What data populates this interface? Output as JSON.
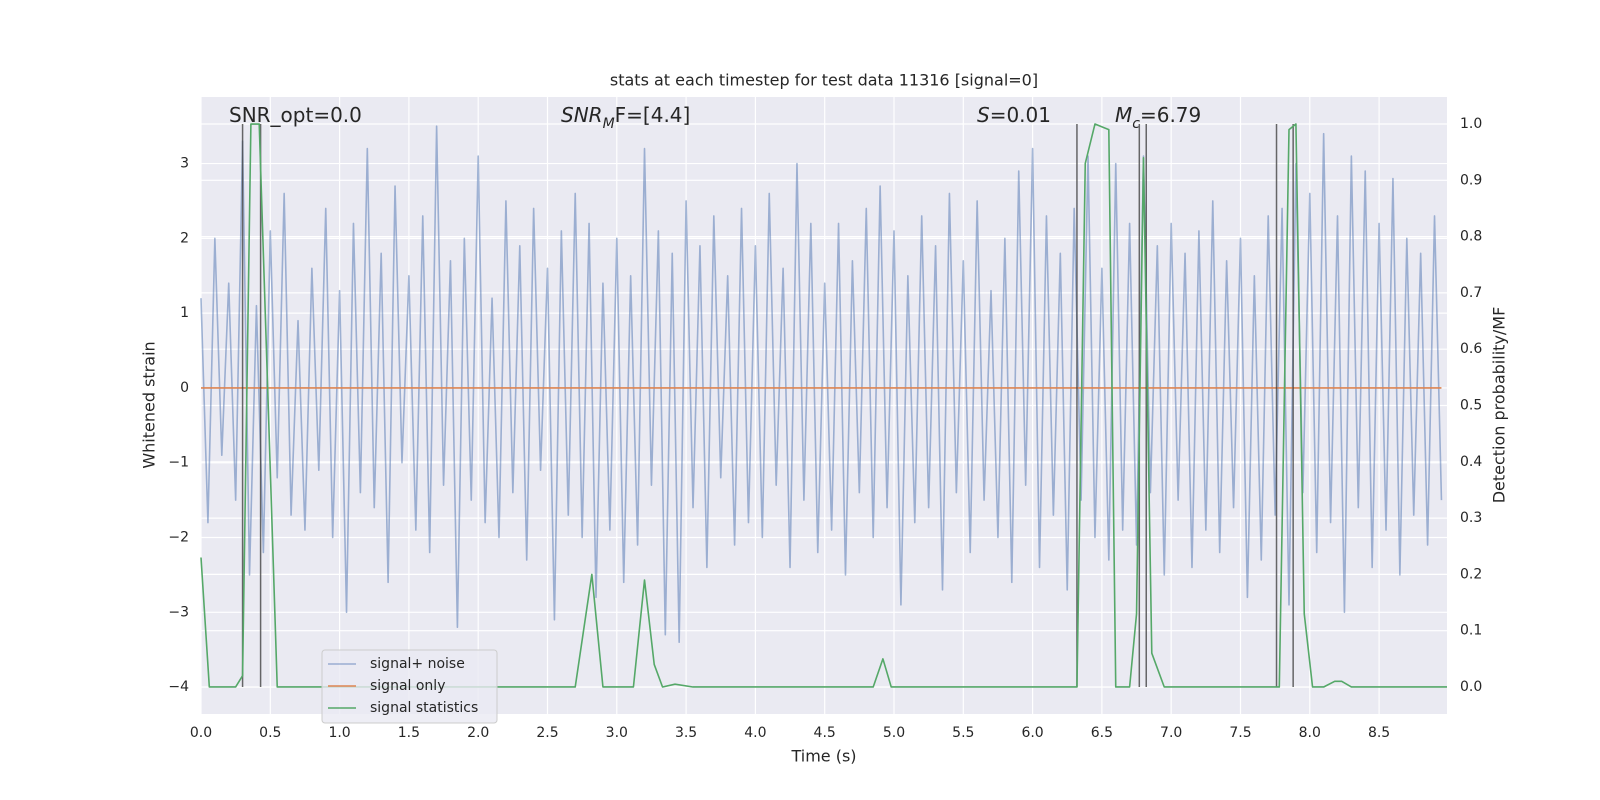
{
  "chart_data": {
    "type": "line",
    "title": "stats at each timestep for test data 11316 [signal=0]",
    "xlabel": "Time (s)",
    "ylabel": "Whitened strain",
    "y2label": "Detection probability/MF",
    "annotations": [
      {
        "base": "SNR_opt=0.0"
      },
      {
        "base": "SNR",
        "sub": "M",
        "rest": "F=[4.4]"
      },
      {
        "base": "S",
        "rest": "=0.01"
      },
      {
        "base": "M",
        "sub": "c",
        "rest": "=6.79"
      }
    ],
    "xlim": [
      0,
      8.99
    ],
    "ylim": [
      -4.36,
      3.89
    ],
    "y2lim": [
      -0.048,
      1.048
    ],
    "xticks": [
      {
        "value": 0,
        "label": "0.0"
      },
      0.5,
      {
        "value": 1,
        "label": "1.0"
      },
      1.5,
      {
        "value": 2,
        "label": "2.0"
      },
      2.5,
      {
        "value": 3,
        "label": "3.0"
      },
      3.5,
      {
        "value": 4,
        "label": "4.0"
      },
      4.5,
      {
        "value": 5,
        "label": "5.0"
      },
      5.5,
      {
        "value": 6,
        "label": "6.0"
      },
      6.5,
      {
        "value": 7,
        "label": "7.0"
      },
      7.5,
      {
        "value": 8,
        "label": "8.0"
      },
      8.5
    ],
    "yticks": [
      {
        "value": -4,
        "label": "−4"
      },
      {
        "value": -3,
        "label": "−3"
      },
      {
        "value": -2,
        "label": "−2"
      },
      {
        "value": -1,
        "label": "−1"
      },
      0,
      1,
      2,
      3
    ],
    "y2ticks": [
      {
        "value": 0,
        "label": "0.0"
      },
      0.1,
      0.2,
      0.3,
      0.4,
      0.5,
      0.6,
      0.7,
      0.8,
      0.9,
      {
        "value": 1,
        "label": "1.0"
      }
    ],
    "grid": true,
    "legend": "lower left",
    "vline_color": "#444444",
    "vline_range": [
      0,
      1
    ],
    "vlines": [
      0.3,
      0.43,
      6.32,
      6.77,
      6.82,
      7.76,
      7.88
    ],
    "series": [
      {
        "name": "signal+ noise",
        "color": "#4c72b0",
        "alpha": 0.5,
        "x": [
          0,
          0.05,
          0.1,
          0.15,
          0.2,
          0.25,
          0.3,
          0.35,
          0.4,
          0.45,
          0.5,
          0.55,
          0.6,
          0.65,
          0.7,
          0.75,
          0.8,
          0.85,
          0.9,
          0.95,
          1,
          1.05,
          1.1,
          1.15,
          1.2,
          1.25,
          1.3,
          1.35,
          1.4,
          1.45,
          1.5,
          1.55,
          1.6,
          1.65,
          1.7,
          1.75,
          1.8,
          1.85,
          1.9,
          1.95,
          2,
          2.05,
          2.1,
          2.15,
          2.2,
          2.25,
          2.3,
          2.35,
          2.4,
          2.45,
          2.5,
          2.55,
          2.6,
          2.65,
          2.7,
          2.75,
          2.8,
          2.85,
          2.9,
          2.95,
          3,
          3.05,
          3.1,
          3.15,
          3.2,
          3.25,
          3.3,
          3.35,
          3.4,
          3.45,
          3.5,
          3.55,
          3.6,
          3.65,
          3.7,
          3.75,
          3.8,
          3.85,
          3.9,
          3.95,
          4,
          4.05,
          4.1,
          4.15,
          4.2,
          4.25,
          4.3,
          4.35,
          4.4,
          4.45,
          4.5,
          4.55,
          4.6,
          4.65,
          4.7,
          4.75,
          4.8,
          4.85,
          4.9,
          4.95,
          5,
          5.05,
          5.1,
          5.15,
          5.2,
          5.25,
          5.3,
          5.35,
          5.4,
          5.45,
          5.5,
          5.55,
          5.6,
          5.65,
          5.7,
          5.75,
          5.8,
          5.85,
          5.9,
          5.95,
          6,
          6.05,
          6.1,
          6.15,
          6.2,
          6.25,
          6.3,
          6.35,
          6.4,
          6.45,
          6.5,
          6.55,
          6.6,
          6.65,
          6.7,
          6.75,
          6.8,
          6.85,
          6.9,
          6.95,
          7,
          7.05,
          7.1,
          7.15,
          7.2,
          7.25,
          7.3,
          7.35,
          7.4,
          7.45,
          7.5,
          7.55,
          7.6,
          7.65,
          7.7,
          7.75,
          7.8,
          7.85,
          7.9,
          7.95,
          8,
          8.05,
          8.1,
          8.15,
          8.2,
          8.25,
          8.3,
          8.35,
          8.4,
          8.45,
          8.5,
          8.55,
          8.6,
          8.65,
          8.7,
          8.75,
          8.8,
          8.85,
          8.9,
          8.95
        ],
        "values": [
          1.2,
          -1.8,
          2.0,
          -0.9,
          1.4,
          -1.5,
          3.3,
          -2.5,
          1.1,
          -2.2,
          2.1,
          -1.2,
          2.6,
          -1.7,
          0.9,
          -1.9,
          1.6,
          -1.1,
          2.4,
          -2.0,
          1.3,
          -3.0,
          2.2,
          -1.4,
          3.2,
          -1.6,
          1.8,
          -2.6,
          2.7,
          -1.0,
          1.5,
          -1.9,
          2.3,
          -2.2,
          3.5,
          -1.3,
          1.7,
          -3.2,
          2.0,
          -1.5,
          3.1,
          -1.8,
          1.2,
          -2.0,
          2.5,
          -1.4,
          1.9,
          -2.3,
          2.4,
          -1.1,
          1.6,
          -3.1,
          2.1,
          -1.7,
          2.6,
          -2.0,
          2.2,
          -2.8,
          1.4,
          -1.9,
          2.0,
          -2.6,
          1.5,
          -2.1,
          3.2,
          -1.3,
          2.1,
          -3.3,
          1.8,
          -3.4,
          2.5,
          -1.6,
          1.9,
          -2.4,
          2.3,
          -1.2,
          1.5,
          -2.1,
          2.4,
          -1.8,
          1.9,
          -2.0,
          2.6,
          -1.3,
          1.6,
          -2.4,
          3.0,
          -1.5,
          2.2,
          -2.2,
          1.4,
          -1.9,
          2.2,
          -2.5,
          1.7,
          -1.4,
          2.4,
          -2.0,
          2.7,
          -1.6,
          2.1,
          -2.9,
          1.5,
          -1.8,
          2.3,
          -1.6,
          1.9,
          -2.7,
          2.6,
          -1.4,
          1.7,
          -2.2,
          2.5,
          -1.5,
          1.3,
          -2.0,
          2.0,
          -2.6,
          2.9,
          -1.3,
          3.2,
          -2.4,
          2.3,
          -1.7,
          1.8,
          -2.7,
          2.4,
          -1.5,
          3.1,
          -2.0,
          1.6,
          -2.3,
          3.0,
          -1.9,
          2.2,
          -2.1,
          3.1,
          -1.4,
          1.9,
          -2.5,
          2.2,
          -1.5,
          1.8,
          -2.4,
          2.1,
          -1.9,
          2.5,
          -2.2,
          1.7,
          -1.6,
          2.0,
          -2.8,
          1.5,
          -2.3,
          2.3,
          -1.7,
          2.4,
          -2.9,
          3.0,
          -1.4,
          2.6,
          -2.2,
          3.4,
          -1.8,
          2.3,
          -3.0,
          3.1,
          -1.6,
          2.9,
          -2.4,
          2.2,
          -1.9,
          2.8,
          -2.5,
          2.0,
          -1.7,
          1.8,
          -2.1,
          2.3,
          -1.5
        ]
      },
      {
        "name": "signal only",
        "color": "#dd8452",
        "x": [
          0,
          8.95
        ],
        "values": [
          0,
          0
        ]
      },
      {
        "name": "signal statistics",
        "color": "#55a868",
        "axis": "y2",
        "x": [
          0,
          0.06,
          0.25,
          0.3,
          0.36,
          0.42,
          0.55,
          2.7,
          2.82,
          2.9,
          3.12,
          3.2,
          3.27,
          3.33,
          3.42,
          3.55,
          4.85,
          4.92,
          4.98,
          6.32,
          6.38,
          6.45,
          6.55,
          6.6,
          6.7,
          6.75,
          6.8,
          6.86,
          6.95,
          7.78,
          7.85,
          7.9,
          7.96,
          8.02,
          8.1,
          8.18,
          8.23,
          8.3,
          8.99
        ],
        "values": [
          0.23,
          0,
          0,
          0.02,
          1.0,
          1.0,
          0,
          0,
          0.2,
          0,
          0,
          0.19,
          0.04,
          0,
          0.005,
          0,
          0,
          0.05,
          0,
          0,
          0.93,
          1.0,
          0.99,
          0,
          0,
          0.13,
          0.94,
          0.06,
          0,
          0,
          0.99,
          1.0,
          0.13,
          0,
          0,
          0.01,
          0.01,
          0,
          0
        ]
      }
    ]
  }
}
